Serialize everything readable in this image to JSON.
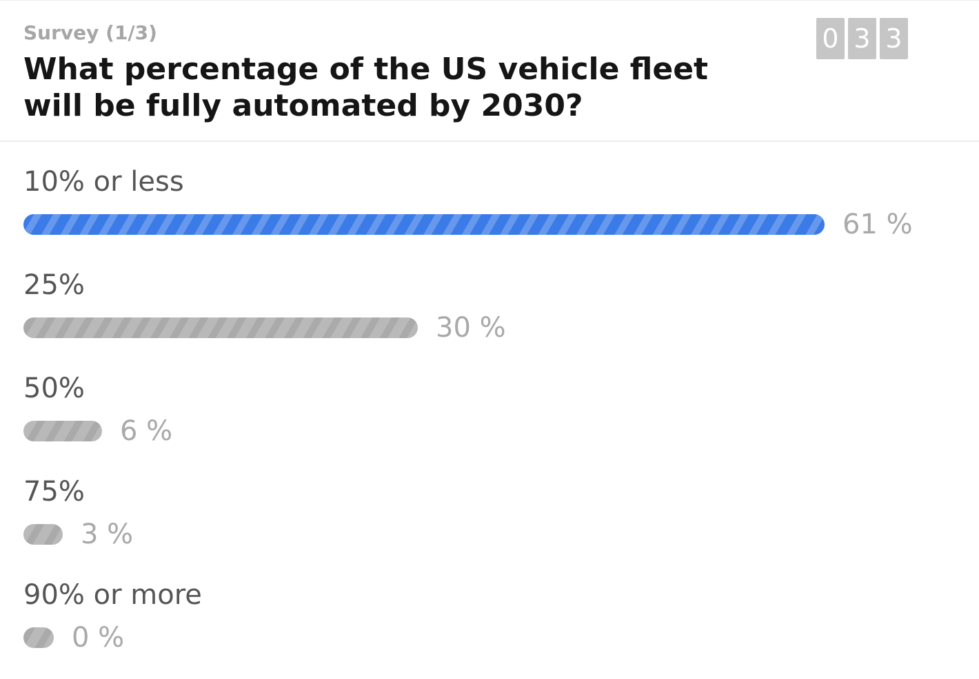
{
  "survey": {
    "progress_label": "Survey (1/3)",
    "question": "What percentage of the US vehicle fleet will be fully automated by 2030?",
    "counter_digits": [
      "0",
      "3",
      "3"
    ]
  },
  "colors": {
    "leader_bar": "#3b7be8",
    "other_bar": "#b9b9b9",
    "counter_bg": "#c6c6c6"
  },
  "options": [
    {
      "label": "10% or less",
      "percent": 61,
      "percent_text": "61 %",
      "leader": true
    },
    {
      "label": "25%",
      "percent": 30,
      "percent_text": "30 %",
      "leader": false
    },
    {
      "label": "50%",
      "percent": 6,
      "percent_text": "6 %",
      "leader": false
    },
    {
      "label": "75%",
      "percent": 3,
      "percent_text": "3 %",
      "leader": false
    },
    {
      "label": "90% or more",
      "percent": 0,
      "percent_text": "0 %",
      "leader": false
    }
  ]
}
